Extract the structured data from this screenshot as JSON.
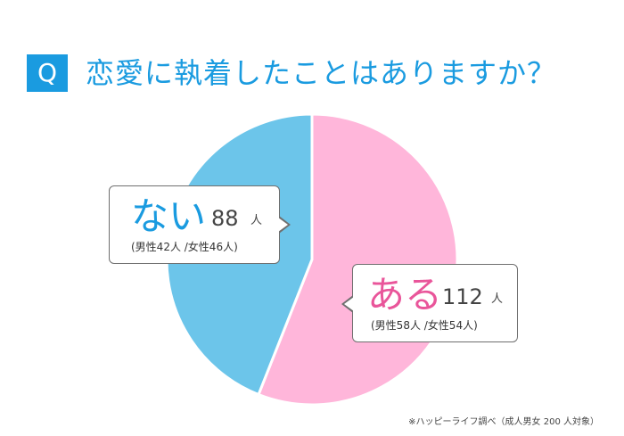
{
  "question_badge": "Q",
  "title": "恋愛に執着したことはありますか？",
  "colors": {
    "accent": "#1a9be0",
    "aru": "#ffb6da",
    "nai": "#6cc5ea",
    "aru_text": "#e9559a",
    "nai_text": "#1a9be0"
  },
  "chart_data": {
    "type": "pie",
    "title": "恋愛に執着したことはありますか？",
    "slices": [
      {
        "label": "ある",
        "value": 112,
        "unit": "人",
        "breakdown": "(男性58人 /女性54人)"
      },
      {
        "label": "ない",
        "value": 88,
        "unit": "人",
        "breakdown": "(男性42人 /女性46人)"
      }
    ],
    "total": 200,
    "legend": "callouts"
  },
  "source": "※ハッピーライフ調べ（成人男女 200 人対象）"
}
